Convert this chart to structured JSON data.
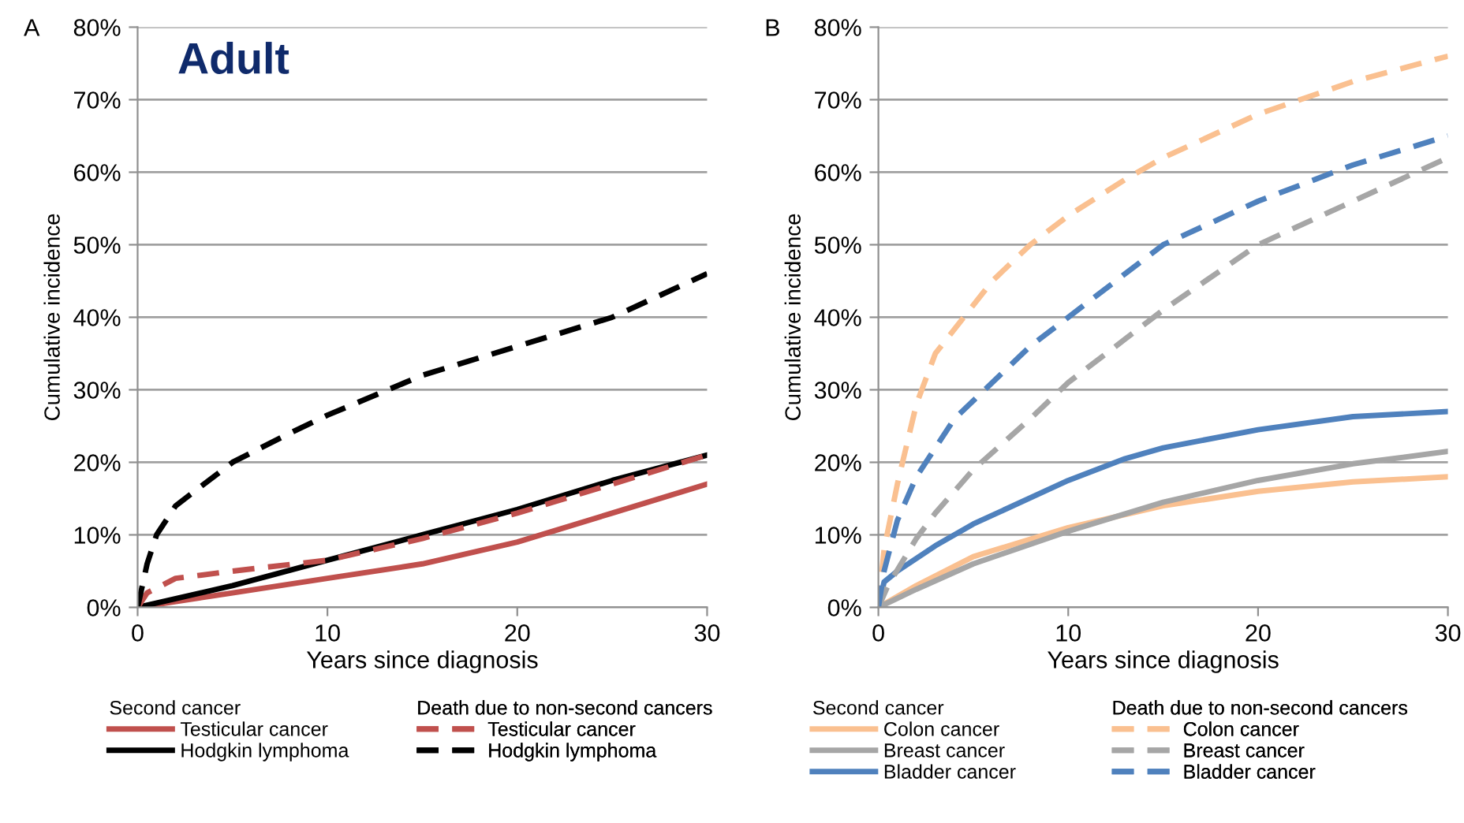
{
  "chart_data": [
    {
      "type": "line",
      "title": "Adult",
      "xlabel": "Years since diagnosis",
      "ylabel": "Cumulative incidence",
      "annotations": [
        "A",
        "Second cancer",
        "Death due to non-second cancers"
      ],
      "xlim": [
        0,
        30
      ],
      "xticks": [
        0,
        10,
        20,
        30
      ],
      "ylim": [
        0,
        80
      ],
      "yticks": [
        {
          "value": 0,
          "label": "0%"
        },
        {
          "value": 10,
          "label": "10%"
        },
        {
          "value": 20,
          "label": "20%"
        },
        {
          "value": 30,
          "label": "30%"
        },
        {
          "value": 40,
          "label": "40%"
        },
        {
          "value": 50,
          "label": "50%"
        },
        {
          "value": 60,
          "label": "60%"
        },
        {
          "value": 70,
          "label": "70%"
        },
        {
          "value": 80,
          "label": "80%"
        }
      ],
      "grid": "y",
      "legend": "bottom",
      "marker": "none",
      "series": [
        {
          "name": "Testicular cancer",
          "color": "#c0504d",
          "line_style": "solid",
          "x": [
            0,
            5,
            10,
            15,
            20,
            25,
            30
          ],
          "values": [
            0,
            2,
            4,
            6,
            9,
            13,
            17
          ]
        },
        {
          "name": "Hodgkin lymphoma",
          "color": "#000000",
          "line_style": "solid",
          "x": [
            0,
            5,
            10,
            15,
            20,
            25,
            30
          ],
          "values": [
            0,
            3,
            6.5,
            10,
            13.5,
            17.5,
            21
          ]
        },
        {
          "name": "Testicular cancer",
          "color": "#c0504d",
          "line_style": "dashed",
          "x": [
            0,
            0.5,
            2,
            5,
            10,
            15,
            20,
            25,
            30
          ],
          "values": [
            0,
            2,
            4,
            5,
            6.5,
            9.5,
            13,
            17,
            21
          ]
        },
        {
          "name": "Hodgkin lymphoma",
          "color": "#000000",
          "line_style": "dashed",
          "x": [
            0,
            0.5,
            1,
            2,
            5,
            8,
            10,
            15,
            20,
            25,
            30
          ],
          "values": [
            0,
            6,
            10,
            14,
            20,
            24,
            26.5,
            32,
            36,
            40,
            46
          ]
        }
      ]
    },
    {
      "type": "line",
      "xlabel": "Years since diagnosis",
      "ylabel": "Cumulative incidence",
      "annotations": [
        "B",
        "Second cancer",
        "Death due to non-second cancers"
      ],
      "xlim": [
        0,
        30
      ],
      "xticks": [
        0,
        10,
        20,
        30
      ],
      "ylim": [
        0,
        80
      ],
      "yticks": [
        {
          "value": 0,
          "label": "0%"
        },
        {
          "value": 10,
          "label": "10%"
        },
        {
          "value": 20,
          "label": "20%"
        },
        {
          "value": 30,
          "label": "30%"
        },
        {
          "value": 40,
          "label": "40%"
        },
        {
          "value": 50,
          "label": "50%"
        },
        {
          "value": 60,
          "label": "60%"
        },
        {
          "value": 70,
          "label": "70%"
        },
        {
          "value": 80,
          "label": "80%"
        }
      ],
      "grid": "y",
      "legend": "bottom",
      "marker": "none",
      "series": [
        {
          "name": "Colon cancer",
          "color": "#fac090",
          "line_style": "solid",
          "x": [
            0,
            2,
            5,
            10,
            15,
            20,
            25,
            30
          ],
          "values": [
            0,
            3,
            7,
            11,
            14,
            16,
            17.3,
            18
          ]
        },
        {
          "name": "Breast cancer",
          "color": "#a6a6a6",
          "line_style": "solid",
          "x": [
            0,
            2,
            5,
            10,
            15,
            20,
            25,
            30
          ],
          "values": [
            0,
            2.5,
            6,
            10.5,
            14.5,
            17.5,
            19.8,
            21.5
          ]
        },
        {
          "name": "Bladder cancer",
          "color": "#4f81bd",
          "line_style": "solid",
          "x": [
            0,
            0.3,
            1,
            3,
            5,
            10,
            13,
            15,
            20,
            25,
            30
          ],
          "values": [
            0,
            3.5,
            5,
            8.5,
            11.5,
            17.5,
            20.5,
            22,
            24.5,
            26.3,
            27
          ]
        },
        {
          "name": "Colon cancer",
          "color": "#fac090",
          "line_style": "dashed",
          "x": [
            0,
            0.3,
            1,
            2,
            3,
            4.5,
            6,
            8,
            10,
            13,
            15,
            20,
            25,
            30
          ],
          "values": [
            0,
            8,
            17,
            28,
            35,
            40,
            45,
            50,
            54,
            59,
            62,
            68,
            72.5,
            76
          ]
        },
        {
          "name": "Breast cancer",
          "color": "#a6a6a6",
          "line_style": "dashed",
          "x": [
            0,
            0.5,
            2,
            3,
            5,
            8,
            10,
            13,
            15,
            20,
            25,
            30
          ],
          "values": [
            0,
            3,
            9.5,
            13,
            19,
            26,
            31,
            37,
            41,
            50,
            56,
            62
          ]
        },
        {
          "name": "Bladder cancer",
          "color": "#4f81bd",
          "line_style": "dashed",
          "x": [
            0,
            0.3,
            1,
            2,
            4,
            6,
            8,
            10,
            15,
            20,
            25,
            30
          ],
          "values": [
            0,
            5,
            12,
            18,
            26,
            31,
            36,
            40,
            50,
            56,
            61,
            65
          ]
        }
      ]
    }
  ]
}
